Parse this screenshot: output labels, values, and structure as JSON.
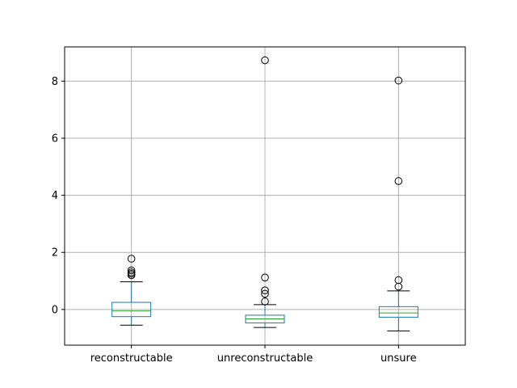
{
  "chart_data": {
    "type": "box",
    "title": "",
    "xlabel": "",
    "ylabel": "",
    "categories": [
      "reconstructable",
      "unreconstructable",
      "unsure"
    ],
    "ylim": [
      -1.25,
      9.2
    ],
    "yticks": [
      0,
      2,
      4,
      6,
      8
    ],
    "grid": true,
    "boxes": [
      {
        "label": "reconstructable",
        "whisker_low": -0.55,
        "q1": -0.25,
        "median": -0.05,
        "q3": 0.25,
        "whisker_high": 0.97,
        "outliers": [
          1.2,
          1.25,
          1.3,
          1.37,
          1.78
        ]
      },
      {
        "label": "unreconstructable",
        "whisker_low": -0.63,
        "q1": -0.47,
        "median": -0.33,
        "q3": -0.2,
        "whisker_high": 0.17,
        "outliers": [
          0.28,
          0.55,
          0.67,
          1.12,
          8.73
        ]
      },
      {
        "label": "unsure",
        "whisker_low": -0.75,
        "q1": -0.27,
        "median": -0.12,
        "q3": 0.1,
        "whisker_high": 0.65,
        "outliers": [
          0.8,
          1.03,
          4.5,
          8.02
        ]
      }
    ],
    "colors": {
      "box": "#1f77b4",
      "median": "#2ca02c",
      "whisker": "#1f77b4",
      "cap": "#000000",
      "outlier": "#000000",
      "grid": "#b0b0b0"
    }
  }
}
